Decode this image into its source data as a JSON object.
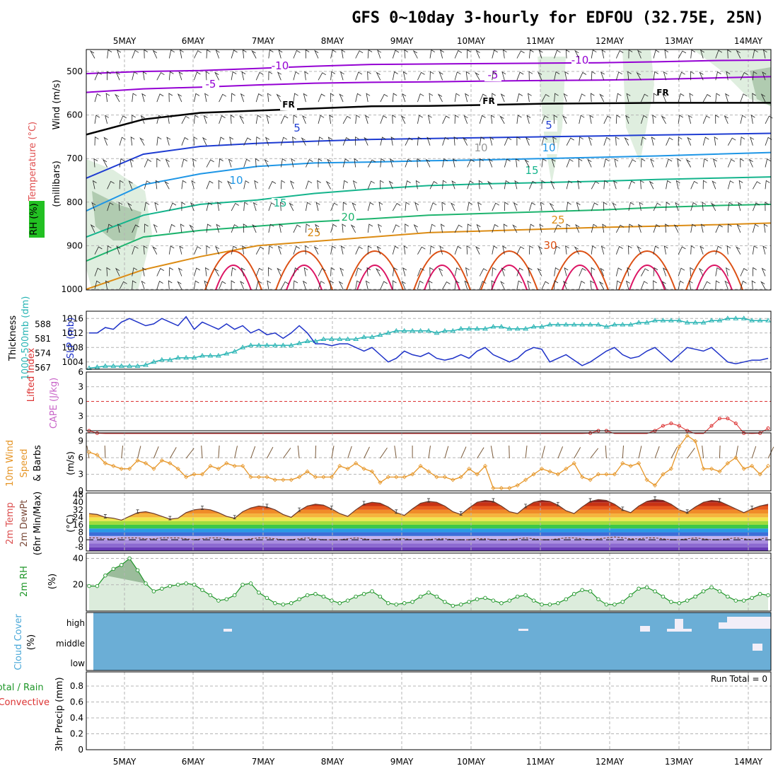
{
  "title": "GFS 0~10day 3-hourly for EDFOU (32.75E, 25N)",
  "colors": {
    "temp_minus10": "#9400d3",
    "temp_minus5": "#9400d3",
    "temp_fr": "#000000",
    "temp_5": "#1e3cd2",
    "temp_10": "#1e96e6",
    "temp_15": "#14b48c",
    "temp_20": "#1eb46e",
    "temp_25": "#dc8c14",
    "temp_30": "#dc5014",
    "temp_hot": "#dc1464",
    "slp": "#1e32c8",
    "thickness": "#28b4b4",
    "wind10m": "#e69628",
    "rh2m": "#1e9628",
    "rh2m_fill": "#dcecdc",
    "cloud": "#6baed6",
    "lifted_index": "#dc3232"
  },
  "chart_data": [
    {
      "type": "line",
      "panel": "Upper-air cross section",
      "ylabel_parts": [
        "RH (%)",
        "Temperature (°C)",
        "Wind (m/s)",
        "(millibars)"
      ],
      "y_ticks": [
        500,
        600,
        700,
        800,
        900,
        1000
      ],
      "ylim": [
        1050,
        455
      ],
      "x_labels": [
        "5MAY",
        "6MAY",
        "7MAY",
        "8MAY",
        "9MAY",
        "10MAY",
        "11MAY",
        "12MAY",
        "13MAY",
        "14MAY"
      ],
      "isotherm_labels": [
        "-10",
        "-10",
        "-5",
        "-5",
        "FR",
        "FR",
        "FR",
        "5",
        "5",
        "10",
        "10",
        "10",
        "15",
        "15",
        "20",
        "25",
        "25",
        "30"
      ],
      "series": [
        {
          "name": "-10",
          "pressure": [
            505,
            500,
            498,
            493,
            488,
            484,
            483,
            482,
            481,
            480,
            478,
            475,
            474
          ]
        },
        {
          "name": "-5",
          "pressure": [
            548,
            540,
            536,
            531,
            527,
            525,
            524,
            522,
            521,
            520,
            518,
            515,
            512
          ]
        },
        {
          "name": "FR",
          "pressure": [
            645,
            610,
            595,
            590,
            585,
            580,
            579,
            577,
            574,
            573,
            572,
            572,
            572
          ]
        },
        {
          "name": "5",
          "pressure": [
            745,
            690,
            672,
            665,
            660,
            656,
            654,
            652,
            650,
            648,
            646,
            644,
            642
          ]
        },
        {
          "name": "10",
          "pressure": [
            820,
            760,
            735,
            718,
            710,
            708,
            705,
            703,
            700,
            697,
            694,
            690,
            686
          ]
        },
        {
          "name": "15",
          "pressure": [
            880,
            830,
            805,
            795,
            780,
            770,
            762,
            758,
            755,
            752,
            748,
            745,
            742
          ]
        },
        {
          "name": "20",
          "pressure": [
            935,
            880,
            865,
            855,
            845,
            838,
            830,
            826,
            822,
            818,
            812,
            808,
            805
          ]
        },
        {
          "name": "25",
          "pressure": [
            1000,
            955,
            925,
            900,
            890,
            880,
            870,
            866,
            862,
            858,
            855,
            852,
            848
          ]
        }
      ]
    },
    {
      "type": "line",
      "panel": "SLP / Thickness",
      "ylabel": "SLP (mb)",
      "ylabel2": "Thickness 1000-500mb (dm)",
      "y_ticks": [
        1004,
        1008,
        1012,
        1016
      ],
      "y2_ticks": [
        567,
        574,
        581,
        588
      ],
      "ylim": [
        1002,
        1018
      ],
      "series": [
        {
          "name": "SLP",
          "values": [
            1012,
            1012,
            1013.5,
            1013,
            1015,
            1016,
            1015,
            1014,
            1014.5,
            1016,
            1015,
            1014,
            1016.5,
            1013,
            1015,
            1014,
            1013,
            1014.5,
            1013,
            1014,
            1012,
            1013,
            1011.5,
            1012,
            1010.5,
            1012,
            1014,
            1012,
            1009,
            1009,
            1008.5,
            1009,
            1009,
            1008,
            1007,
            1008,
            1006,
            1004,
            1005,
            1007,
            1006,
            1005.5,
            1006.5,
            1005,
            1004.5,
            1005,
            1006,
            1005,
            1007,
            1008,
            1006,
            1005,
            1004,
            1005,
            1007,
            1008,
            1007.5,
            1004,
            1005,
            1006,
            1004.5,
            1003,
            1004,
            1005.5,
            1007,
            1008,
            1006,
            1005,
            1005.5,
            1007,
            1008,
            1006,
            1004,
            1006,
            1008,
            1007.5,
            1007,
            1008,
            1006,
            1004,
            1003.5,
            1004,
            1004.5,
            1004.5,
            1005
          ]
        },
        {
          "name": "Thickness",
          "values": [
            564,
            564.5,
            565,
            565,
            565,
            565,
            565,
            565.5,
            567,
            568,
            568,
            569,
            569,
            569,
            570,
            570,
            570,
            571,
            572,
            574,
            575,
            575,
            575,
            575,
            575,
            575,
            576,
            577,
            577,
            578,
            578,
            578,
            578,
            578,
            579,
            579,
            580,
            581,
            582,
            582,
            582,
            582,
            582,
            581,
            582,
            582,
            583,
            583,
            583,
            583,
            584,
            584,
            583,
            583,
            583,
            584,
            584,
            585,
            585,
            585,
            585,
            585,
            585,
            585,
            584,
            585,
            585,
            585,
            586,
            586,
            587,
            587,
            587,
            587,
            586,
            586,
            586,
            587,
            587,
            588,
            588,
            588,
            587,
            587,
            587
          ]
        }
      ]
    },
    {
      "type": "line",
      "panel": "Lifted Index / CAPE",
      "ylabel": "Lifted Index",
      "ylabel2": "CAPE (J/kg)",
      "y_ticks": [
        -6,
        -3,
        0,
        3,
        6
      ],
      "y_tick_labels": [
        "6",
        "3",
        "0",
        "3",
        "6"
      ],
      "ylim": [
        -6,
        6
      ],
      "series": [
        {
          "name": "Lifted Index",
          "values": [
            6,
            6.5,
            7,
            7,
            7,
            7,
            7,
            7,
            7,
            7,
            7,
            7,
            7,
            7,
            7,
            7,
            7,
            7,
            7,
            7,
            7,
            7,
            7,
            7,
            7,
            7,
            7,
            7,
            7,
            7,
            7,
            7,
            7,
            7,
            7,
            7,
            7,
            7,
            7,
            7,
            7,
            7,
            7,
            7,
            7,
            7,
            7,
            7,
            7,
            7,
            7,
            7,
            7,
            7,
            7,
            7,
            7,
            7,
            7,
            7,
            7,
            7,
            6.5,
            6,
            6,
            7,
            7,
            7,
            7,
            7,
            6,
            5,
            4.5,
            5,
            6,
            7,
            7,
            5,
            3.5,
            3.5,
            4.5,
            6.5,
            7,
            6.5,
            5.5
          ]
        }
      ]
    },
    {
      "type": "line",
      "panel": "10m Wind",
      "ylabel": "10m Wind Speed & Barbs (m/s)",
      "y_ticks": [
        0,
        3,
        6,
        9
      ],
      "ylim": [
        0,
        10.5
      ],
      "series": [
        {
          "name": "10m Wind Speed",
          "values": [
            7,
            6.5,
            5,
            4.5,
            4,
            4,
            5.5,
            5,
            4,
            5.5,
            5,
            4,
            2.5,
            3,
            3,
            4.5,
            4,
            5,
            4.5,
            4.5,
            2.5,
            2.5,
            2.5,
            2,
            2,
            2,
            2.5,
            3.5,
            2.5,
            2.5,
            2.5,
            4.5,
            4,
            5,
            4,
            3.5,
            1.5,
            2.5,
            2.5,
            2.5,
            3,
            4.5,
            3.5,
            2.5,
            2.5,
            2,
            2.5,
            4,
            3,
            4.5,
            0.5,
            0.5,
            0.5,
            1,
            2,
            3,
            4,
            3.5,
            3,
            4,
            5,
            2.5,
            2,
            3,
            3,
            3,
            5,
            4.5,
            5,
            2,
            1,
            3,
            4,
            8,
            10,
            9,
            4,
            4,
            3.5,
            5,
            6,
            4,
            4.5,
            3,
            4.5
          ]
        }
      ]
    },
    {
      "type": "area",
      "panel": "2m Temp / DewPt",
      "ylabel": "2m Temp 2m DewPt (6hr Min/Max) (°C)",
      "y_ticks": [
        -8,
        0,
        8,
        16,
        24,
        32,
        40,
        48
      ],
      "ylim": [
        -12,
        50
      ],
      "series": [
        {
          "name": "2m Temp",
          "values": [
            28,
            27,
            24,
            23,
            21,
            25,
            29,
            30,
            28,
            25,
            22,
            23,
            29,
            32,
            33,
            32,
            29,
            25,
            23,
            30,
            34,
            36,
            35,
            32,
            27,
            24,
            31,
            36,
            38,
            37,
            33,
            28,
            25,
            32,
            38,
            40,
            39,
            35,
            29,
            26,
            33,
            39,
            41,
            40,
            36,
            30,
            27,
            34,
            40,
            42,
            41,
            36,
            30,
            28,
            35,
            40,
            42,
            41,
            37,
            31,
            28,
            35,
            41,
            43,
            42,
            38,
            32,
            29,
            36,
            41,
            43,
            42,
            38,
            32,
            29,
            35,
            40,
            42,
            41,
            37,
            33,
            29,
            33,
            36,
            38
          ]
        },
        {
          "name": "2m DewPt",
          "values": [
            2,
            2,
            1,
            1,
            2,
            2,
            2,
            1,
            1,
            2,
            2,
            2,
            1,
            0,
            1,
            2,
            2,
            1,
            0,
            0,
            1,
            2,
            2,
            1,
            0,
            0,
            1,
            2,
            1,
            0,
            0,
            0,
            1,
            2,
            1,
            0,
            0,
            0,
            1,
            1,
            0,
            0,
            0,
            1,
            1,
            0,
            0,
            0,
            1,
            1,
            0,
            0,
            0,
            1,
            2,
            1,
            0,
            0,
            1,
            2,
            2,
            1,
            0,
            1,
            2,
            3,
            2,
            1,
            1,
            2,
            2,
            1,
            0,
            0,
            1,
            2,
            1,
            0,
            0,
            1,
            2,
            1,
            0,
            1,
            2
          ]
        }
      ]
    },
    {
      "type": "area",
      "panel": "2m RH",
      "ylabel": "2m RH (%)",
      "y_ticks": [
        20,
        40
      ],
      "ylim": [
        0,
        44
      ],
      "series": [
        {
          "name": "2m RH",
          "values": [
            19,
            19,
            27,
            32,
            35,
            40,
            31,
            21,
            15,
            17,
            19,
            20,
            21,
            20,
            16,
            12,
            8,
            9,
            12,
            20,
            21,
            14,
            10,
            6,
            5,
            6,
            9,
            12,
            13,
            11,
            8,
            6,
            8,
            11,
            13,
            15,
            11,
            6,
            5,
            6,
            7,
            11,
            14,
            11,
            7,
            4,
            5,
            7,
            9,
            10,
            8,
            6,
            8,
            11,
            12,
            8,
            5,
            5,
            6,
            9,
            13,
            16,
            15,
            9,
            5,
            5,
            7,
            12,
            17,
            18,
            15,
            11,
            7,
            6,
            8,
            11,
            15,
            18,
            15,
            11,
            8,
            8,
            10,
            13,
            12
          ]
        }
      ]
    },
    {
      "type": "heatmap",
      "panel": "Cloud Cover",
      "ylabel": "Cloud Cover (%)",
      "y_tick_labels": [
        "high",
        "middle",
        "low"
      ],
      "note": "Mostly clear (blue); small high-cloud patches near 6MAY, 11MAY, 12MAY-14MAY; middle-cloud patch near 14MAY"
    },
    {
      "type": "bar",
      "panel": "3hr Precip",
      "ylabel": "3hr Precip (mm)",
      "ylabel_legend": [
        "Total / Rain",
        "Convective"
      ],
      "y_ticks": [
        0,
        0.2,
        0.4,
        0.6,
        0.8
      ],
      "ylim": [
        0,
        1
      ],
      "annotation": "Run Total = 0",
      "values": []
    }
  ]
}
